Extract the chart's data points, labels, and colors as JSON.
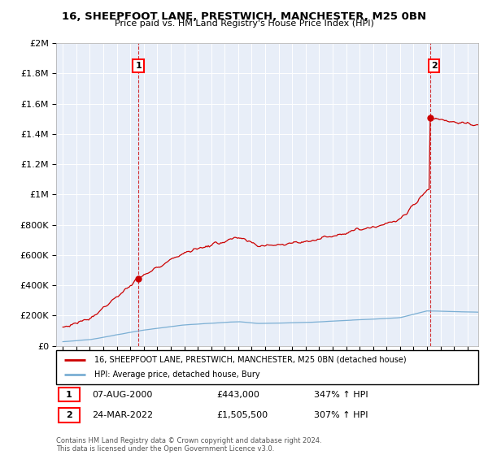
{
  "title1": "16, SHEEPFOOT LANE, PRESTWICH, MANCHESTER, M25 0BN",
  "title2": "Price paid vs. HM Land Registry's House Price Index (HPI)",
  "property_label": "16, SHEEPFOOT LANE, PRESTWICH, MANCHESTER, M25 0BN (detached house)",
  "hpi_label": "HPI: Average price, detached house, Bury",
  "point1_label": "07-AUG-2000",
  "point1_price": "£443,000",
  "point1_hpi": "347% ↑ HPI",
  "point1_x": 2000.6,
  "point1_y": 443000,
  "point2_label": "24-MAR-2022",
  "point2_price": "£1,505,500",
  "point2_hpi": "307% ↑ HPI",
  "point2_x": 2022.23,
  "point2_y": 1505500,
  "property_color": "#cc0000",
  "hpi_color": "#7bafd4",
  "background_color": "#ffffff",
  "plot_bg_color": "#e8eef8",
  "grid_color": "#ffffff",
  "ylim": [
    0,
    2000000
  ],
  "xlim_start": 1994.5,
  "xlim_end": 2025.8,
  "footer": "Contains HM Land Registry data © Crown copyright and database right 2024.\nThis data is licensed under the Open Government Licence v3.0."
}
